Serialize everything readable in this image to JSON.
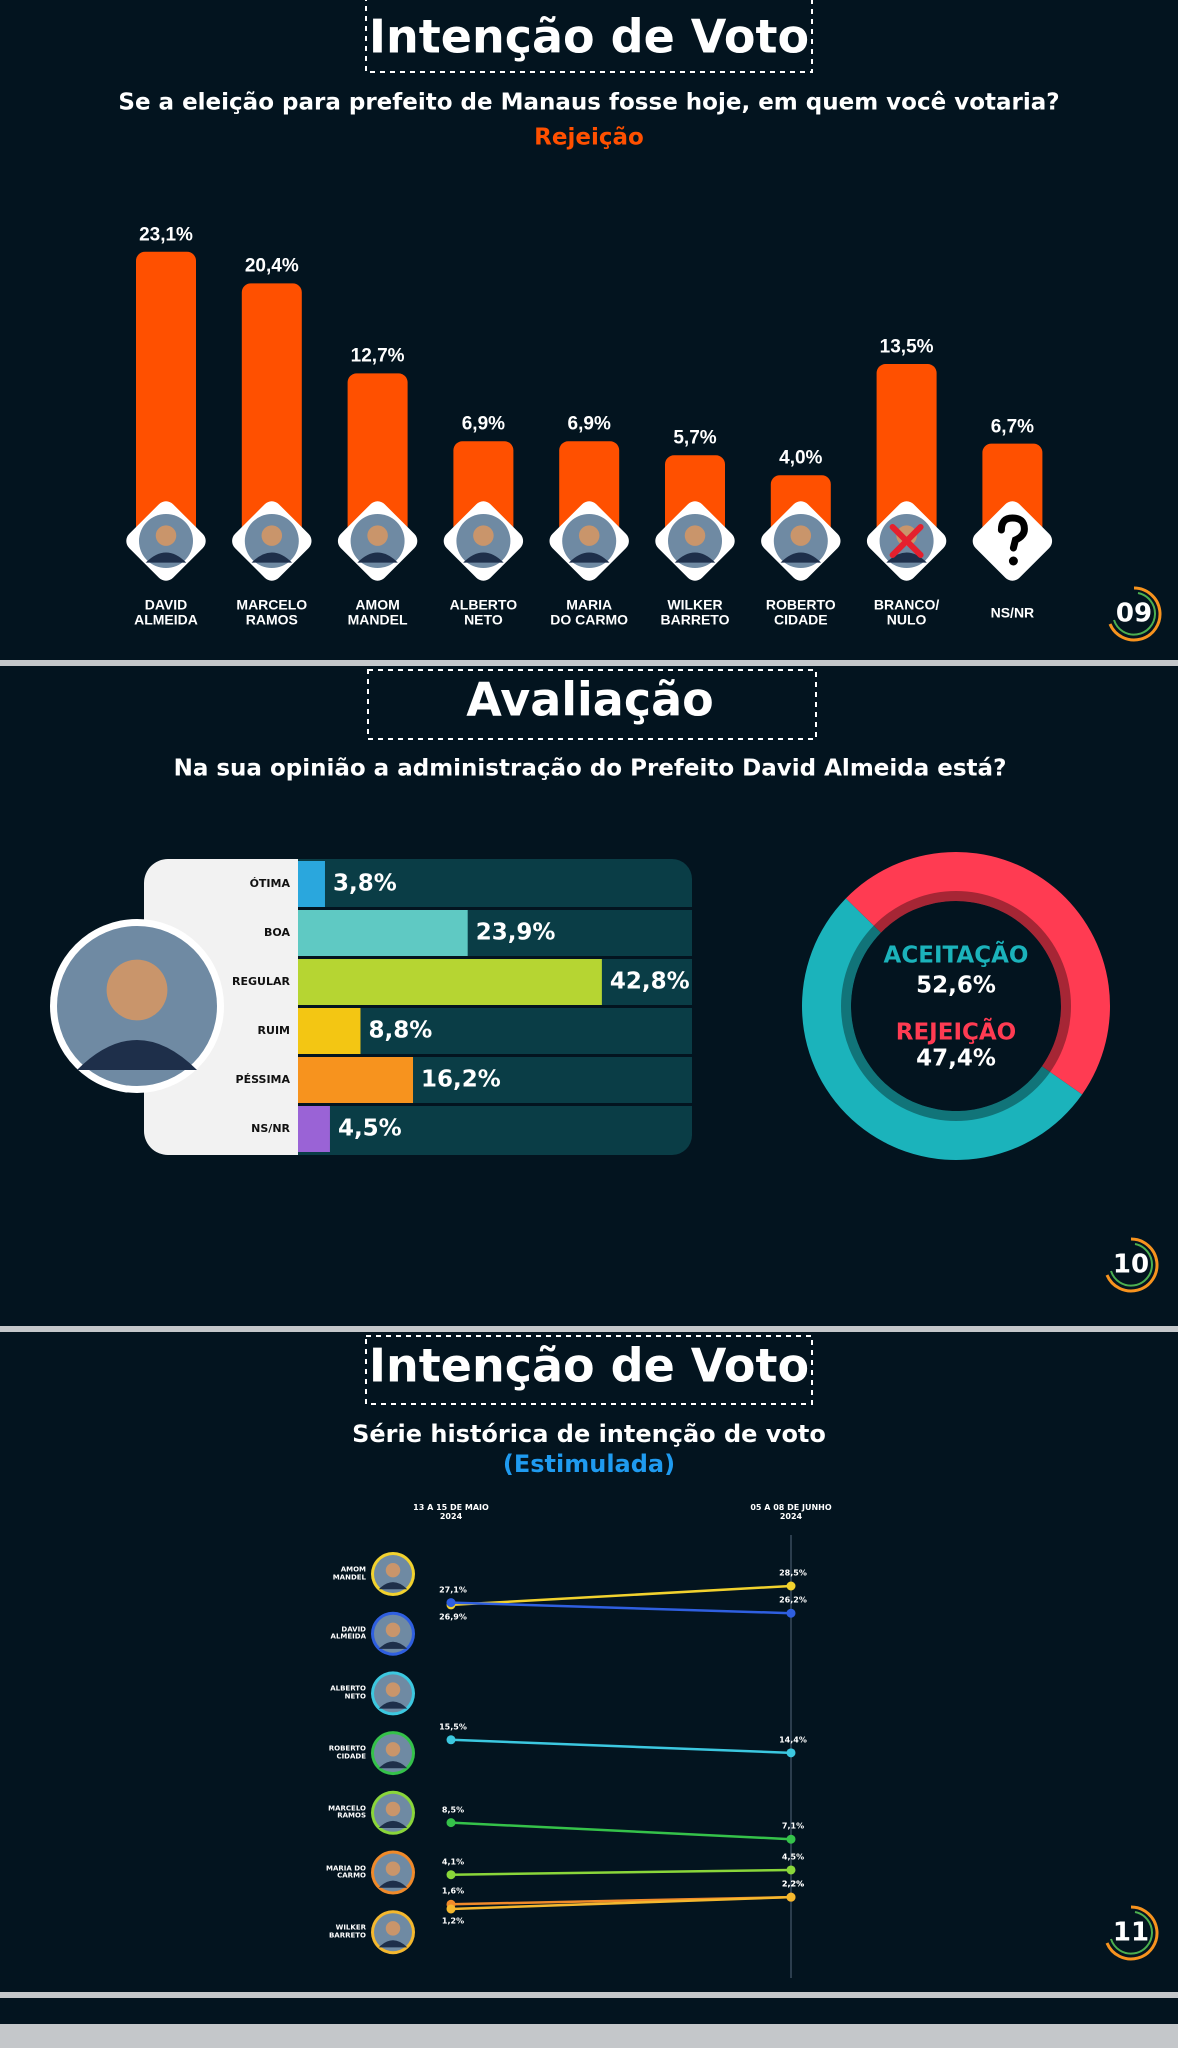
{
  "chart_data": [
    {
      "type": "bar",
      "title": "Intenção de Voto",
      "subtitle": "Se a eleição para prefeito de Manaus fosse hoje, em quem você votaria?",
      "highlight": "Rejeição",
      "categories": [
        "DAVID\nALMEIDA",
        "MARCELO\nRAMOS",
        "AMOM\nMANDEL",
        "ALBERTO\nNETO",
        "MARIA\nDO CARMO",
        "WILKER\nBARRETO",
        "ROBERTO\nCIDADE",
        "BRANCO/\nNULO",
        "NS/NR"
      ],
      "values": [
        23.1,
        20.4,
        12.7,
        6.9,
        6.9,
        5.7,
        4.0,
        13.5,
        6.7
      ],
      "value_labels": [
        "23,1%",
        "20,4%",
        "12,7%",
        "6,9%",
        "6,9%",
        "5,7%",
        "4,0%",
        "13,5%",
        "6,7%"
      ],
      "color": "#ff5000",
      "page_number": "09"
    },
    {
      "type": "hbar",
      "title": "Avaliação",
      "subtitle": "Na sua opinião a administração do Prefeito David Almeida está?",
      "categories": [
        "ÓTIMA",
        "BOA",
        "REGULAR",
        "RUIM",
        "PÉSSIMA",
        "NS/NR"
      ],
      "values": [
        3.8,
        23.9,
        42.8,
        8.8,
        16.2,
        4.5
      ],
      "value_labels": [
        "3,8%",
        "23,9%",
        "42,8%",
        "8,8%",
        "16,2%",
        "4,5%"
      ],
      "colors": [
        "#2aa7dd",
        "#5fc9c3",
        "#b6d532",
        "#f3c613",
        "#f7931e",
        "#9a63d6"
      ],
      "page_number": "10"
    },
    {
      "type": "pie",
      "categories": [
        "ACEITAÇÃO",
        "REJEIÇÃO"
      ],
      "values": [
        52.6,
        47.4
      ],
      "value_labels": [
        "52,6%",
        "47,4%"
      ],
      "colors": [
        "#1bb3bb",
        "#ff3b52"
      ],
      "donut": true
    },
    {
      "type": "line",
      "title": "Intenção de Voto",
      "subtitle": "Série histórica de intenção de voto",
      "highlight": "(Estimulada)",
      "x": [
        "13 A 15 DE MAIO\n2024",
        "05 A 08 DE JUNHO\n2024"
      ],
      "series": [
        {
          "name": "AMOM\nMANDEL",
          "color": "#f2d22e",
          "values": [
            26.9,
            28.5
          ],
          "value_labels": [
            "26,9%",
            "28,5%"
          ]
        },
        {
          "name": "DAVID\nALMEIDA",
          "color": "#2f5fe0",
          "values": [
            27.1,
            26.2
          ],
          "value_labels": [
            "27,1%",
            "26,2%"
          ]
        },
        {
          "name": "ALBERTO\nNETO",
          "color": "#3cc8e0",
          "values": [
            15.5,
            14.4
          ],
          "value_labels": [
            "15,5%",
            "14,4%"
          ]
        },
        {
          "name": "ROBERTO\nCIDADE",
          "color": "#35c24a",
          "values": [
            8.5,
            7.1
          ],
          "value_labels": [
            "8,5%",
            "7,1%"
          ]
        },
        {
          "name": "MARCELO\nRAMOS",
          "color": "#8ad63a",
          "values": [
            4.1,
            4.5
          ],
          "value_labels": [
            "4,1%",
            "4,5%"
          ]
        },
        {
          "name": "MARIA DO\nCARMO",
          "color": "#f08a2a",
          "values": [
            1.6,
            2.2
          ],
          "value_labels": [
            "1,6%",
            "2,2%"
          ]
        },
        {
          "name": "WILKER\nBARRETO",
          "color": "#f5b82e",
          "values": [
            1.2,
            2.2
          ],
          "value_labels": [
            "1,2%",
            "2,2%"
          ]
        }
      ],
      "page_number": "11"
    }
  ]
}
